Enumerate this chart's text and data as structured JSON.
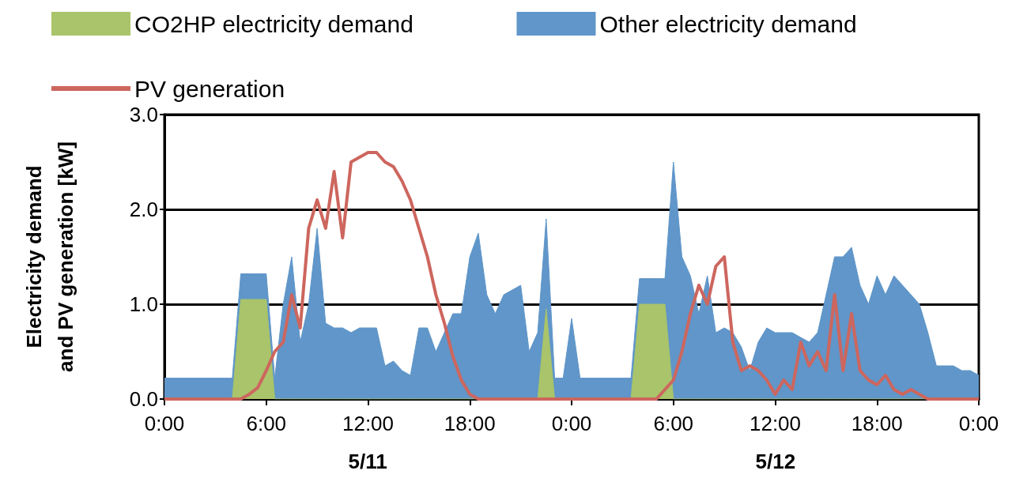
{
  "chart_data": {
    "type": "area",
    "stacked": true,
    "ylabel": "Electricity demand and PV generation [kW]",
    "annotations": [
      "5/11",
      "5/12"
    ],
    "x": [
      "--05-11T00:00",
      "--05-11T00:30",
      "--05-11T01:00",
      "--05-11T01:30",
      "--05-11T02:00",
      "--05-11T02:30",
      "--05-11T03:00",
      "--05-11T03:30",
      "--05-11T04:00",
      "--05-11T04:30",
      "--05-11T05:00",
      "--05-11T05:30",
      "--05-11T06:00",
      "--05-11T06:30",
      "--05-11T07:00",
      "--05-11T07:30",
      "--05-11T08:00",
      "--05-11T08:30",
      "--05-11T09:00",
      "--05-11T09:30",
      "--05-11T10:00",
      "--05-11T10:30",
      "--05-11T11:00",
      "--05-11T11:30",
      "--05-11T12:00",
      "--05-11T12:30",
      "--05-11T13:00",
      "--05-11T13:30",
      "--05-11T14:00",
      "--05-11T14:30",
      "--05-11T15:00",
      "--05-11T15:30",
      "--05-11T16:00",
      "--05-11T16:30",
      "--05-11T17:00",
      "--05-11T17:30",
      "--05-11T18:00",
      "--05-11T18:30",
      "--05-11T19:00",
      "--05-11T19:30",
      "--05-11T20:00",
      "--05-11T20:30",
      "--05-11T21:00",
      "--05-11T21:30",
      "--05-11T22:00",
      "--05-11T22:30",
      "--05-11T23:00",
      "--05-11T23:30",
      "--05-12T00:00",
      "--05-12T00:30",
      "--05-12T01:00",
      "--05-12T01:30",
      "--05-12T02:00",
      "--05-12T02:30",
      "--05-12T03:00",
      "--05-12T03:30",
      "--05-12T04:00",
      "--05-12T04:30",
      "--05-12T05:00",
      "--05-12T05:30",
      "--05-12T06:00",
      "--05-12T06:30",
      "--05-12T07:00",
      "--05-12T07:30",
      "--05-12T08:00",
      "--05-12T08:30",
      "--05-12T09:00",
      "--05-12T09:30",
      "--05-12T10:00",
      "--05-12T10:30",
      "--05-12T11:00",
      "--05-12T11:30",
      "--05-12T12:00",
      "--05-12T12:30",
      "--05-12T13:00",
      "--05-12T13:30",
      "--05-12T14:00",
      "--05-12T14:30",
      "--05-12T15:00",
      "--05-12T15:30",
      "--05-12T16:00",
      "--05-12T16:30",
      "--05-12T17:00",
      "--05-12T17:30",
      "--05-12T18:00",
      "--05-12T18:30",
      "--05-12T19:00",
      "--05-12T19:30",
      "--05-12T20:00",
      "--05-12T20:30",
      "--05-12T21:00",
      "--05-12T21:30",
      "--05-12T22:00",
      "--05-12T22:30",
      "--05-12T23:00",
      "--05-12T23:30",
      "--05-13T00:00"
    ],
    "xlim": [
      "--05-11T00:00",
      "--05-13T00:00"
    ],
    "xticks": [
      {
        "value": "--05-11T00:00",
        "label": "0:00"
      },
      {
        "value": "--05-11T06:00",
        "label": "6:00"
      },
      {
        "value": "--05-11T12:00",
        "label": "12:00"
      },
      {
        "value": "--05-11T18:00",
        "label": "18:00"
      },
      {
        "value": "--05-12T00:00",
        "label": "0:00"
      },
      {
        "value": "--05-12T06:00",
        "label": "6:00"
      },
      {
        "value": "--05-12T12:00",
        "label": "12:00"
      },
      {
        "value": "--05-12T18:00",
        "label": "18:00"
      },
      {
        "value": "--05-13T00:00",
        "label": "0:00"
      }
    ],
    "ylim": [
      0,
      3
    ],
    "yticks": [
      {
        "value": 0,
        "label": "0.0"
      },
      {
        "value": 1,
        "label": "1.0"
      },
      {
        "value": 2,
        "label": "2.0"
      },
      {
        "value": 3,
        "label": "3.0"
      }
    ],
    "grid": "y",
    "legend": "top",
    "series": [
      {
        "name": "CO2HP electricity demand",
        "color": "#a9c46a",
        "values": [
          0,
          0,
          0,
          0,
          0,
          0,
          0,
          0,
          0,
          1.05,
          1.05,
          1.05,
          1.05,
          0,
          0,
          0,
          0,
          0,
          0,
          0,
          0,
          0,
          0,
          0,
          0,
          0,
          0,
          0,
          0,
          0,
          0,
          0,
          0,
          0,
          0,
          0,
          0,
          0,
          0,
          0,
          0,
          0,
          0,
          0,
          0,
          0.95,
          0,
          0,
          0,
          0,
          0,
          0,
          0,
          0,
          0,
          0,
          1.0,
          1.0,
          1.0,
          1.0,
          0,
          0,
          0,
          0,
          0,
          0,
          0,
          0,
          0,
          0,
          0,
          0,
          0,
          0,
          0,
          0,
          0,
          0,
          0,
          0,
          0,
          0,
          0,
          0,
          0,
          0,
          0,
          0,
          0,
          0,
          0,
          0,
          0,
          0,
          0,
          0,
          0
        ]
      },
      {
        "name": "Other electricity demand",
        "color": "#6096c9",
        "values": [
          0.22,
          0.22,
          0.22,
          0.22,
          0.22,
          0.22,
          0.22,
          0.22,
          0.22,
          0.27,
          0.27,
          0.27,
          0.27,
          0.22,
          1.0,
          1.5,
          0.6,
          1.0,
          1.8,
          0.8,
          0.75,
          0.75,
          0.7,
          0.75,
          0.75,
          0.75,
          0.35,
          0.4,
          0.3,
          0.25,
          0.75,
          0.75,
          0.5,
          0.7,
          0.9,
          0.9,
          1.5,
          1.75,
          1.1,
          0.9,
          1.1,
          1.15,
          1.2,
          0.5,
          0.7,
          0.95,
          0.22,
          0.22,
          0.85,
          0.22,
          0.22,
          0.22,
          0.22,
          0.22,
          0.22,
          0.22,
          0.27,
          0.27,
          0.27,
          0.27,
          2.5,
          1.5,
          1.3,
          0.9,
          1.3,
          0.7,
          0.75,
          0.7,
          0.55,
          0.3,
          0.6,
          0.75,
          0.7,
          0.7,
          0.7,
          0.65,
          0.6,
          0.7,
          1.1,
          1.5,
          1.5,
          1.6,
          1.2,
          1.0,
          1.3,
          1.1,
          1.3,
          1.2,
          1.1,
          1.0,
          0.7,
          0.35,
          0.35,
          0.35,
          0.3,
          0.3,
          0.25
        ]
      },
      {
        "name": "PV generation",
        "type": "line",
        "color": "#cd665e",
        "values": [
          0,
          0,
          0,
          0,
          0,
          0,
          0,
          0,
          0,
          0,
          0.05,
          0.12,
          0.3,
          0.5,
          0.6,
          1.1,
          0.75,
          1.8,
          2.1,
          1.8,
          2.4,
          1.7,
          2.5,
          2.55,
          2.6,
          2.6,
          2.5,
          2.45,
          2.3,
          2.1,
          1.8,
          1.5,
          1.1,
          0.8,
          0.45,
          0.2,
          0.05,
          0,
          0,
          0,
          0,
          0,
          0,
          0,
          0,
          0,
          0,
          0,
          0,
          0,
          0,
          0,
          0,
          0,
          0,
          0,
          0,
          0,
          0,
          0.1,
          0.2,
          0.5,
          0.9,
          1.2,
          1.0,
          1.4,
          1.5,
          0.6,
          0.3,
          0.35,
          0.3,
          0.2,
          0.05,
          0.2,
          0.1,
          0.6,
          0.35,
          0.5,
          0.3,
          1.1,
          0.3,
          0.9,
          0.3,
          0.2,
          0.15,
          0.25,
          0.1,
          0.05,
          0.1,
          0.05,
          0,
          0,
          0,
          0,
          0,
          0,
          0
        ]
      }
    ]
  }
}
